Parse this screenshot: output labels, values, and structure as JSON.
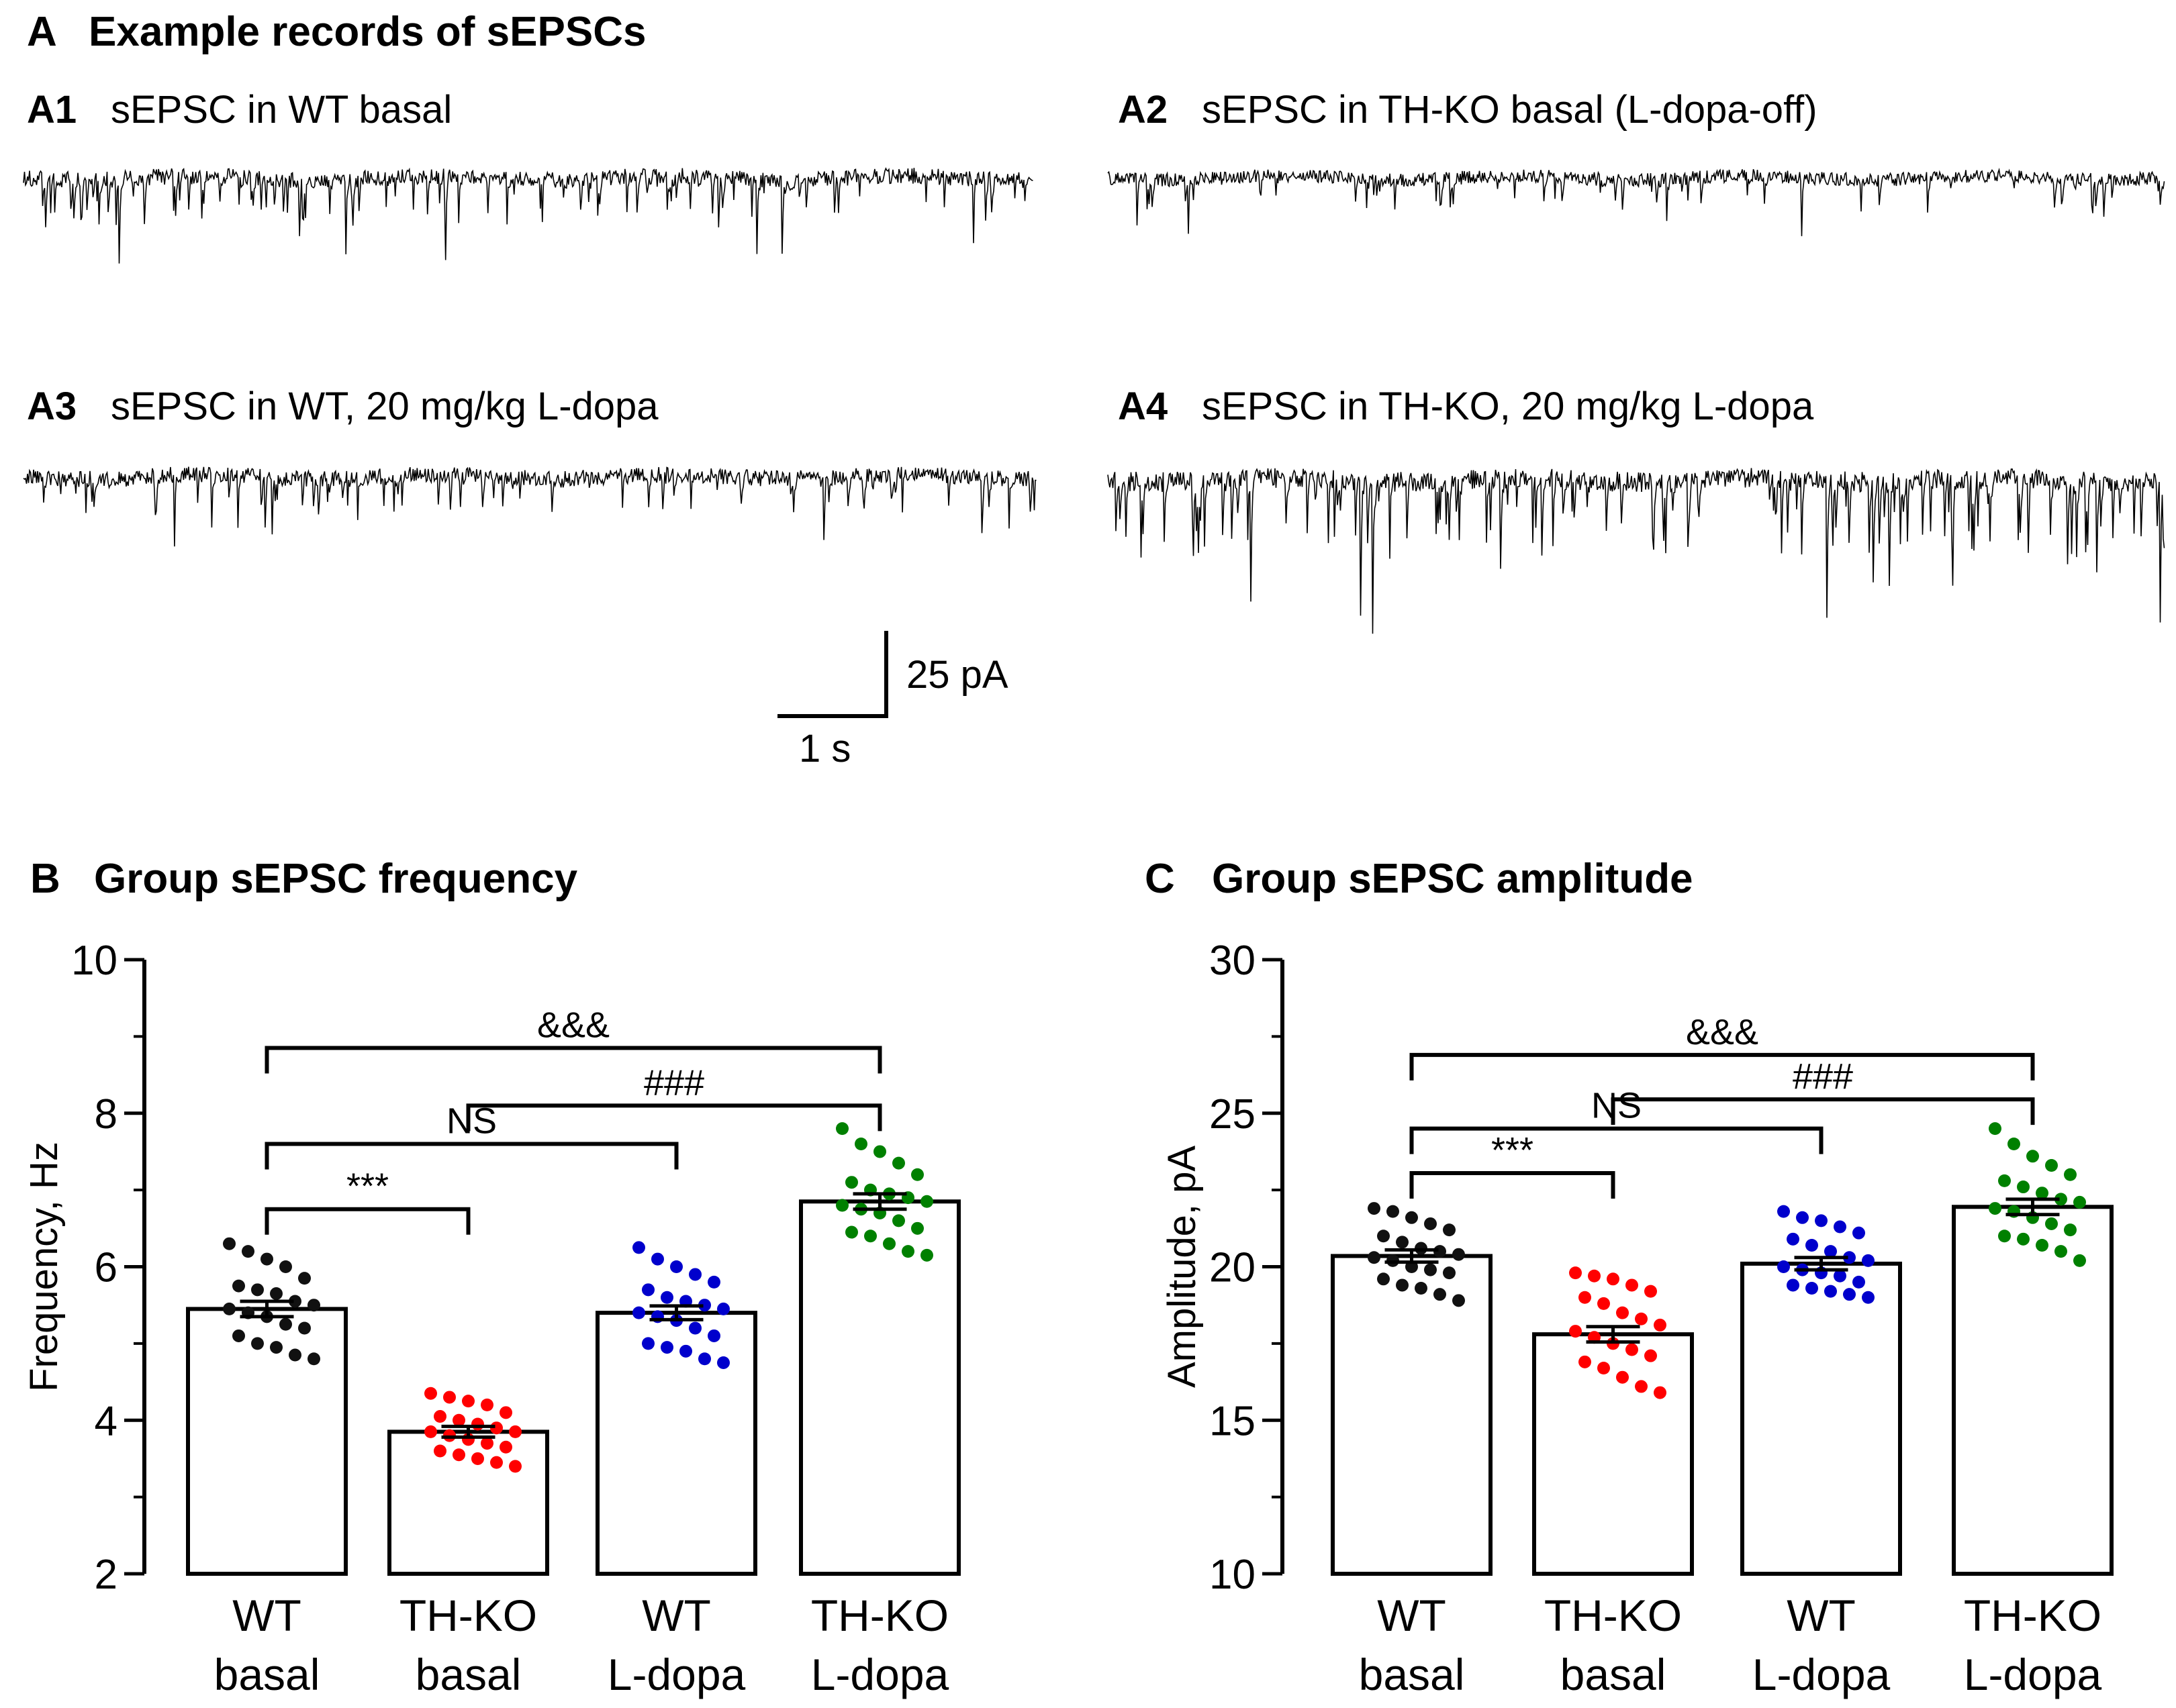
{
  "panel_a": {
    "letter": "A",
    "title": "Example records of sEPSCs",
    "traces": [
      {
        "id": "A1",
        "label": "sEPSC in WT basal",
        "noise": 24,
        "events": 95,
        "max_event_pA": 35,
        "seed": 11
      },
      {
        "id": "A2",
        "label": "sEPSC in TH-KO basal (L-dopa-off)",
        "noise": 20,
        "events": 60,
        "max_event_pA": 28,
        "seed": 23
      },
      {
        "id": "A3",
        "label": "sEPSC in WT, 20 mg/kg L-dopa",
        "noise": 24,
        "events": 95,
        "max_event_pA": 30,
        "seed": 37
      },
      {
        "id": "A4",
        "label": "sEPSC in TH-KO, 20 mg/kg L-dopa",
        "noise": 30,
        "events": 130,
        "max_event_pA": 62,
        "seed": 53
      }
    ],
    "scale_bar": {
      "current": "25 pA",
      "time": "1 s"
    }
  },
  "chart_data": [
    {
      "type": "bar",
      "panel": "B",
      "title": "Group sEPSC frequency",
      "ylabel": "Frequency, Hz",
      "ylim": [
        2,
        10
      ],
      "yticks": [
        2,
        4,
        6,
        8,
        10
      ],
      "categories": [
        [
          "WT",
          "basal"
        ],
        [
          "TH-KO",
          "basal"
        ],
        [
          "WT",
          "L-dopa"
        ],
        [
          "TH-KO",
          "L-dopa"
        ]
      ],
      "colors": [
        "#111111",
        "#ff0000",
        "#0000cc",
        "#008000"
      ],
      "means": [
        5.45,
        3.85,
        5.4,
        6.85
      ],
      "sem": [
        0.1,
        0.07,
        0.09,
        0.1
      ],
      "points": [
        [
          6.3,
          6.2,
          6.1,
          6.0,
          5.85,
          5.75,
          5.7,
          5.65,
          5.55,
          5.5,
          5.45,
          5.4,
          5.35,
          5.25,
          5.2,
          5.1,
          5.0,
          4.95,
          4.85,
          4.8
        ],
        [
          4.35,
          4.3,
          4.25,
          4.2,
          4.1,
          4.05,
          4.0,
          3.95,
          3.9,
          3.85,
          3.85,
          3.8,
          3.75,
          3.7,
          3.65,
          3.6,
          3.55,
          3.5,
          3.45,
          3.4
        ],
        [
          6.25,
          6.1,
          6.0,
          5.9,
          5.8,
          5.7,
          5.6,
          5.55,
          5.5,
          5.45,
          5.4,
          5.35,
          5.3,
          5.2,
          5.1,
          5.0,
          4.95,
          4.9,
          4.8,
          4.75
        ],
        [
          7.8,
          7.6,
          7.5,
          7.35,
          7.2,
          7.1,
          7.0,
          6.95,
          6.9,
          6.85,
          6.8,
          6.75,
          6.7,
          6.6,
          6.5,
          6.45,
          6.4,
          6.3,
          6.2,
          6.15
        ]
      ],
      "comparisons": [
        {
          "from": 0,
          "to": 1,
          "y": 6.75,
          "label": "***"
        },
        {
          "from": 0,
          "to": 2,
          "y": 7.6,
          "label": "NS"
        },
        {
          "from": 1,
          "to": 3,
          "y": 8.1,
          "label": "###"
        },
        {
          "from": 0,
          "to": 3,
          "y": 8.85,
          "label": "&&&"
        }
      ]
    },
    {
      "type": "bar",
      "panel": "C",
      "title": "Group sEPSC amplitude",
      "ylabel": "Amplitude, pA",
      "ylim": [
        10,
        30
      ],
      "yticks": [
        10,
        15,
        20,
        25,
        30
      ],
      "categories": [
        [
          "WT",
          "basal"
        ],
        [
          "TH-KO",
          "basal"
        ],
        [
          "WT",
          "L-dopa"
        ],
        [
          "TH-KO",
          "L-dopa"
        ]
      ],
      "colors": [
        "#111111",
        "#ff0000",
        "#0000cc",
        "#008000"
      ],
      "means": [
        20.35,
        17.8,
        20.1,
        21.95
      ],
      "sem": [
        0.2,
        0.25,
        0.2,
        0.25
      ],
      "points": [
        [
          21.9,
          21.8,
          21.6,
          21.4,
          21.2,
          21.0,
          20.8,
          20.6,
          20.5,
          20.4,
          20.3,
          20.2,
          20.0,
          19.9,
          19.8,
          19.6,
          19.4,
          19.3,
          19.1,
          18.9
        ],
        [
          19.8,
          19.7,
          19.6,
          19.4,
          19.2,
          19.0,
          18.8,
          18.5,
          18.3,
          18.1,
          17.9,
          17.7,
          17.5,
          17.3,
          17.1,
          16.9,
          16.7,
          16.4,
          16.1,
          15.9
        ],
        [
          21.8,
          21.6,
          21.5,
          21.3,
          21.1,
          20.9,
          20.7,
          20.5,
          20.3,
          20.2,
          20.0,
          19.9,
          19.8,
          19.7,
          19.5,
          19.4,
          19.3,
          19.2,
          19.1,
          19.0
        ],
        [
          24.5,
          24.0,
          23.6,
          23.3,
          23.0,
          22.8,
          22.6,
          22.4,
          22.2,
          22.1,
          21.9,
          21.8,
          21.6,
          21.4,
          21.2,
          21.0,
          20.9,
          20.7,
          20.5,
          20.2
        ]
      ],
      "comparisons": [
        {
          "from": 0,
          "to": 1,
          "y": 23.05,
          "label": "***"
        },
        {
          "from": 0,
          "to": 2,
          "y": 24.5,
          "label": "NS"
        },
        {
          "from": 1,
          "to": 3,
          "y": 25.45,
          "label": "###"
        },
        {
          "from": 0,
          "to": 3,
          "y": 26.9,
          "label": "&&&"
        }
      ]
    }
  ]
}
